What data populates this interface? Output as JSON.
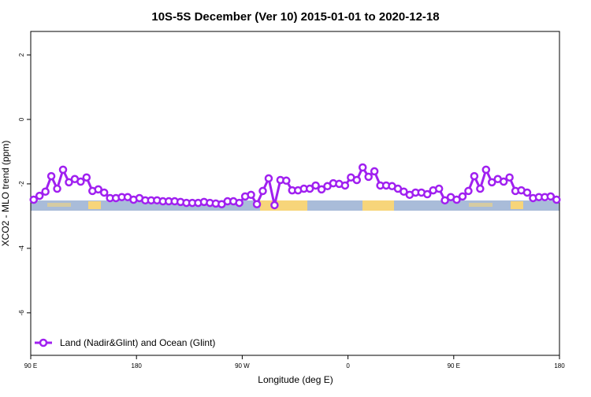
{
  "chart_data": {
    "type": "line",
    "title": "10S-5S December (Ver 10)   2015-01-01 to 2020-12-18",
    "x_label": "Longitude (deg E)",
    "y_label": "XCO2 - MLO trend (ppm)",
    "xlim": [
      90,
      540
    ],
    "xticks": [
      {
        "value": 90,
        "label": "90 E"
      },
      {
        "value": 180,
        "label": "180"
      },
      {
        "value": 270,
        "label": "90 W"
      },
      {
        "value": 360,
        "label": "0"
      },
      {
        "value": 450,
        "label": "90 E"
      },
      {
        "value": 540,
        "label": "180"
      }
    ],
    "ylim": [
      -7.32,
      2.73
    ],
    "yticks": [
      -6,
      -4,
      -2,
      0,
      2
    ],
    "legend_position": "bottom-left",
    "x": [
      92.5,
      97.5,
      102.5,
      107.5,
      112.5,
      117.5,
      122.5,
      127.5,
      132.5,
      137.5,
      142.5,
      147.5,
      152.5,
      157.5,
      162.5,
      167.5,
      172.5,
      177.5,
      182.5,
      187.5,
      192.5,
      197.5,
      202.5,
      207.5,
      212.5,
      217.5,
      222.5,
      227.5,
      232.5,
      237.5,
      242.5,
      247.5,
      252.5,
      257.5,
      262.5,
      267.5,
      272.5,
      277.5,
      282.5,
      287.5,
      292.5,
      297.5,
      302.5,
      307.5,
      312.5,
      317.5,
      322.5,
      327.5,
      332.5,
      337.5,
      342.5,
      347.5,
      352.5,
      357.5,
      362.5,
      367.5,
      372.5,
      377.5,
      382.5,
      387.5,
      392.5,
      397.5,
      402.5,
      407.5,
      412.5,
      417.5,
      422.5,
      427.5,
      432.5,
      437.5,
      442.5,
      447.5,
      452.5,
      457.5,
      462.5,
      467.5,
      472.5,
      477.5,
      482.5,
      487.5,
      492.5,
      497.5,
      502.5,
      507.5,
      512.5,
      517.5,
      522.5,
      527.5,
      532.5,
      537.5
    ],
    "series": [
      {
        "name": "Land (Nadir&Glint) and Ocean (Glint)",
        "color": "#a020f0",
        "values": [
          -2.49,
          -2.37,
          -2.24,
          -1.76,
          -2.15,
          -1.56,
          -1.95,
          -1.85,
          -1.93,
          -1.8,
          -2.22,
          -2.17,
          -2.27,
          -2.44,
          -2.44,
          -2.41,
          -2.41,
          -2.49,
          -2.44,
          -2.51,
          -2.51,
          -2.51,
          -2.54,
          -2.54,
          -2.54,
          -2.56,
          -2.59,
          -2.59,
          -2.59,
          -2.56,
          -2.59,
          -2.61,
          -2.63,
          -2.54,
          -2.54,
          -2.59,
          -2.39,
          -2.34,
          -2.63,
          -2.22,
          -1.83,
          -2.66,
          -1.88,
          -1.9,
          -2.2,
          -2.2,
          -2.15,
          -2.15,
          -2.05,
          -2.17,
          -2.07,
          -1.98,
          -2.0,
          -2.05,
          -1.8,
          -1.88,
          -1.49,
          -1.78,
          -1.61,
          -2.05,
          -2.05,
          -2.07,
          -2.15,
          -2.24,
          -2.34,
          -2.27,
          -2.27,
          -2.32,
          -2.2,
          -2.15,
          -2.51,
          -2.41,
          -2.49,
          -2.39,
          -2.22,
          -1.76,
          -2.15,
          -1.56,
          -1.95,
          -1.85,
          -1.93,
          -1.8,
          -2.22,
          -2.2,
          -2.27,
          -2.44,
          -2.41,
          -2.41,
          -2.39,
          -2.49
        ]
      }
    ]
  }
}
